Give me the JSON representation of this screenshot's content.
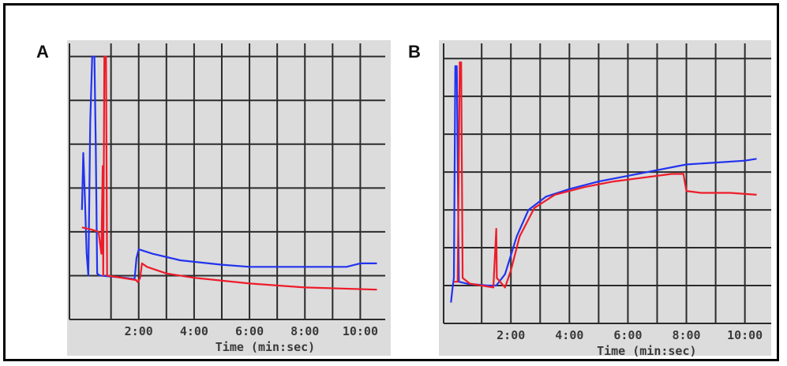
{
  "colors": {
    "blue": "#2233ee",
    "red": "#ee1c2a",
    "paper": "#dcdcdc",
    "grid": "#2b2b2b"
  },
  "panels": [
    {
      "label": "A"
    },
    {
      "label": "B"
    }
  ],
  "chart_data": [
    {
      "type": "line",
      "panel": "A",
      "xlabel": "Time (min:sec)",
      "ylabel": "",
      "title": "",
      "x_ticks": [
        {
          "value": 2,
          "label": "2:00"
        },
        {
          "value": 4,
          "label": "4:00"
        },
        {
          "value": 6,
          "label": "6:00"
        },
        {
          "value": 8,
          "label": "8:00"
        },
        {
          "value": 10,
          "label": "10:00"
        }
      ],
      "xlim": [
        -0.5,
        10.9
      ],
      "ylim": [
        0,
        6.3
      ],
      "grid": true,
      "series": [
        {
          "color_key": "blue",
          "points": [
            [
              -0.05,
              2.5
            ],
            [
              0,
              3.8
            ],
            [
              0.05,
              2.9
            ],
            [
              0.12,
              1.5
            ],
            [
              0.18,
              1.0
            ],
            [
              0.25,
              4.5
            ],
            [
              0.32,
              6.0
            ],
            [
              0.4,
              6.0
            ],
            [
              0.45,
              4.0
            ],
            [
              0.5,
              1.05
            ],
            [
              0.6,
              1.0
            ],
            [
              1.5,
              0.95
            ],
            [
              1.85,
              0.92
            ],
            [
              1.92,
              1.4
            ],
            [
              2.0,
              1.6
            ],
            [
              2.5,
              1.5
            ],
            [
              3.5,
              1.35
            ],
            [
              5.0,
              1.25
            ],
            [
              6.0,
              1.2
            ],
            [
              8.0,
              1.2
            ],
            [
              9.5,
              1.2
            ],
            [
              10.0,
              1.28
            ],
            [
              10.6,
              1.28
            ]
          ]
        },
        {
          "color_key": "red",
          "points": [
            [
              -0.05,
              2.1
            ],
            [
              0.3,
              2.05
            ],
            [
              0.55,
              2.0
            ],
            [
              0.65,
              1.5
            ],
            [
              0.7,
              3.5
            ],
            [
              0.72,
              1.0
            ],
            [
              0.76,
              6.0
            ],
            [
              0.82,
              6.0
            ],
            [
              0.86,
              1.0
            ],
            [
              1.2,
              0.97
            ],
            [
              1.9,
              0.9
            ],
            [
              1.97,
              0.85
            ],
            [
              2.05,
              0.95
            ],
            [
              2.12,
              1.28
            ],
            [
              2.3,
              1.2
            ],
            [
              3.0,
              1.05
            ],
            [
              4.0,
              0.95
            ],
            [
              6.0,
              0.82
            ],
            [
              8.0,
              0.73
            ],
            [
              10.6,
              0.68
            ]
          ]
        }
      ]
    },
    {
      "type": "line",
      "panel": "B",
      "xlabel": "Time (min:sec)",
      "ylabel": "",
      "title": "",
      "x_ticks": [
        {
          "value": 2,
          "label": "2:00"
        },
        {
          "value": 4,
          "label": "4:00"
        },
        {
          "value": 6,
          "label": "6:00"
        },
        {
          "value": 8,
          "label": "8:00"
        },
        {
          "value": 10,
          "label": "10:00"
        }
      ],
      "xlim": [
        -0.3,
        10.9
      ],
      "ylim": [
        0,
        7.4
      ],
      "grid": true,
      "series": [
        {
          "color_key": "blue",
          "points": [
            [
              -0.05,
              0.55
            ],
            [
              0,
              0.9
            ],
            [
              0.05,
              1.2
            ],
            [
              0.1,
              6.8
            ],
            [
              0.15,
              6.8
            ],
            [
              0.22,
              1.1
            ],
            [
              0.5,
              1.05
            ],
            [
              1.2,
              1.0
            ],
            [
              1.5,
              1.0
            ],
            [
              1.8,
              1.3
            ],
            [
              2.2,
              2.3
            ],
            [
              2.6,
              3.0
            ],
            [
              3.2,
              3.35
            ],
            [
              4.0,
              3.55
            ],
            [
              5.0,
              3.75
            ],
            [
              6.0,
              3.9
            ],
            [
              7.0,
              4.05
            ],
            [
              8.0,
              4.2
            ],
            [
              9.0,
              4.25
            ],
            [
              10.0,
              4.3
            ],
            [
              10.4,
              4.35
            ]
          ]
        },
        {
          "color_key": "red",
          "points": [
            [
              0.05,
              1.1
            ],
            [
              0.18,
              1.1
            ],
            [
              0.25,
              6.9
            ],
            [
              0.3,
              6.9
            ],
            [
              0.35,
              1.2
            ],
            [
              0.6,
              1.05
            ],
            [
              1.0,
              1.0
            ],
            [
              1.4,
              0.95
            ],
            [
              1.5,
              2.5
            ],
            [
              1.52,
              1.2
            ],
            [
              1.8,
              0.95
            ],
            [
              2.0,
              1.4
            ],
            [
              2.3,
              2.3
            ],
            [
              2.8,
              3.05
            ],
            [
              3.5,
              3.4
            ],
            [
              4.5,
              3.6
            ],
            [
              5.5,
              3.75
            ],
            [
              6.5,
              3.85
            ],
            [
              7.5,
              3.95
            ],
            [
              7.9,
              3.95
            ],
            [
              8.0,
              3.5
            ],
            [
              8.5,
              3.45
            ],
            [
              9.5,
              3.45
            ],
            [
              10.4,
              3.4
            ]
          ]
        }
      ]
    }
  ]
}
